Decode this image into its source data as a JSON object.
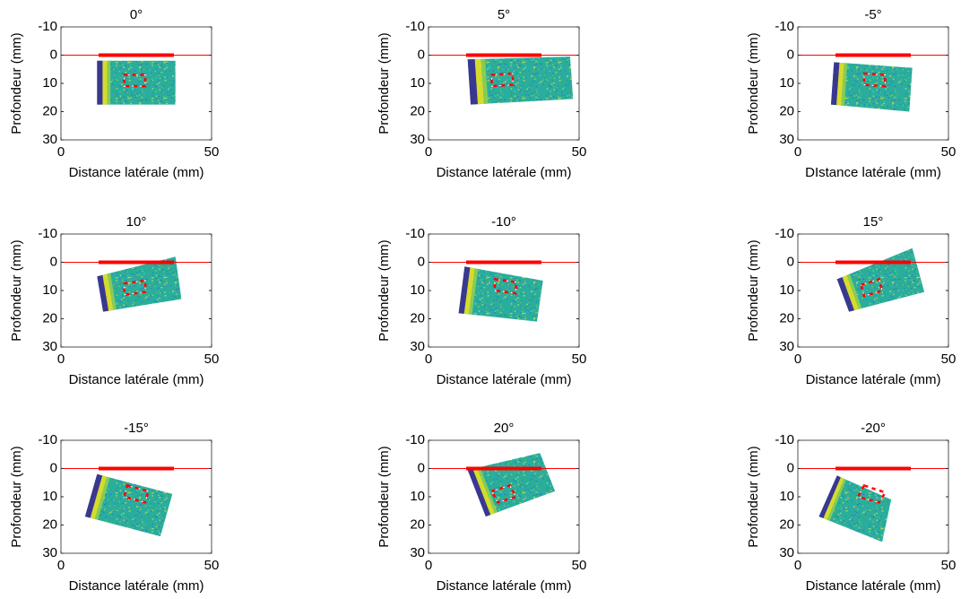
{
  "chart_data": [
    {
      "type": "image",
      "title": "0°",
      "xlabel": "Distance latérale (mm)",
      "ylabel": "Profondeur (mm)",
      "xlim": [
        0,
        50
      ],
      "ylim": [
        -10,
        30
      ],
      "y_reversed": true,
      "xticks": [
        0,
        50
      ],
      "yticks": [
        -10,
        0,
        10,
        20,
        30
      ],
      "lines": [
        {
          "color": "#ff0000",
          "linewidth": 1,
          "x": [
            0,
            50
          ],
          "y": [
            0,
            0
          ]
        },
        {
          "color": "#ff0000",
          "linewidth": 4,
          "x": [
            12.5,
            37.5
          ],
          "y": [
            0,
            0
          ]
        }
      ],
      "image": {
        "x": [
          12,
          38,
          38,
          12
        ],
        "y": [
          2,
          2,
          17.5,
          17.5
        ]
      },
      "roi": {
        "color": "#ff0000",
        "x": [
          21,
          28,
          28,
          21
        ],
        "y": [
          7,
          7,
          11,
          11
        ]
      }
    },
    {
      "type": "image",
      "title": "5°",
      "xlabel": "Distance latérale (mm)",
      "ylabel": "Profondeur (mm)",
      "xlim": [
        0,
        50
      ],
      "ylim": [
        -10,
        30
      ],
      "y_reversed": true,
      "xticks": [
        0,
        50
      ],
      "yticks": [
        -10,
        0,
        10,
        20,
        30
      ],
      "lines": [
        {
          "color": "#ff0000",
          "linewidth": 1,
          "x": [
            0,
            50
          ],
          "y": [
            0,
            0
          ]
        },
        {
          "color": "#ff0000",
          "linewidth": 4,
          "x": [
            12.5,
            37.5
          ],
          "y": [
            0,
            0
          ]
        }
      ],
      "image": {
        "x": [
          13,
          47,
          48,
          14
        ],
        "y": [
          1.5,
          0.5,
          15.5,
          17.5
        ]
      },
      "roi": {
        "color": "#ff0000",
        "x": [
          21,
          28,
          28,
          21
        ],
        "y": [
          7,
          6.5,
          10.5,
          11
        ]
      }
    },
    {
      "type": "image",
      "title": "-5°",
      "xlabel": "DIstance latérale (mm)",
      "ylabel": "Profondeur (mm)",
      "xlim": [
        0,
        50
      ],
      "ylim": [
        -10,
        30
      ],
      "y_reversed": true,
      "xticks": [
        0,
        50
      ],
      "yticks": [
        -10,
        0,
        10,
        20,
        30
      ],
      "lines": [
        {
          "color": "#ff0000",
          "linewidth": 1,
          "x": [
            0,
            50
          ],
          "y": [
            0,
            0
          ]
        },
        {
          "color": "#ff0000",
          "linewidth": 4,
          "x": [
            12.5,
            37.5
          ],
          "y": [
            0,
            0
          ]
        }
      ],
      "image": {
        "x": [
          12,
          38,
          37,
          11
        ],
        "y": [
          2.5,
          4.5,
          20,
          17.5
        ]
      },
      "roi": {
        "color": "#ff0000",
        "x": [
          22,
          29,
          29,
          22
        ],
        "y": [
          6.5,
          7,
          11,
          10.5
        ]
      }
    },
    {
      "type": "image",
      "title": "10°",
      "xlabel": "Distance latérale (mm)",
      "ylabel": "Profondeur (mm)",
      "xlim": [
        0,
        50
      ],
      "ylim": [
        -10,
        30
      ],
      "y_reversed": true,
      "xticks": [
        0,
        50
      ],
      "yticks": [
        -10,
        0,
        10,
        20,
        30
      ],
      "lines": [
        {
          "color": "#ff0000",
          "linewidth": 1,
          "x": [
            0,
            50
          ],
          "y": [
            0,
            0
          ]
        },
        {
          "color": "#ff0000",
          "linewidth": 4,
          "x": [
            12.5,
            37.5
          ],
          "y": [
            0,
            0
          ]
        }
      ],
      "image": {
        "x": [
          12,
          38,
          40,
          14
        ],
        "y": [
          5,
          -2,
          13,
          17.5
        ]
      },
      "roi": {
        "color": "#ff0000",
        "x": [
          21,
          28,
          28,
          21
        ],
        "y": [
          7.5,
          6.5,
          10.5,
          11.5
        ]
      }
    },
    {
      "type": "image",
      "title": "-10°",
      "xlabel": "Distance latérale (mm)",
      "ylabel": "Profondeur (mm)",
      "xlim": [
        0,
        50
      ],
      "ylim": [
        -10,
        30
      ],
      "y_reversed": true,
      "xticks": [
        0,
        50
      ],
      "yticks": [
        -10,
        0,
        10,
        20,
        30
      ],
      "lines": [
        {
          "color": "#ff0000",
          "linewidth": 1,
          "x": [
            0,
            50
          ],
          "y": [
            0,
            0
          ]
        },
        {
          "color": "#ff0000",
          "linewidth": 4,
          "x": [
            12.5,
            37.5
          ],
          "y": [
            0,
            0
          ]
        }
      ],
      "image": {
        "x": [
          12,
          38,
          36,
          10
        ],
        "y": [
          1.5,
          6.5,
          21,
          18
        ]
      },
      "roi": {
        "color": "#ff0000",
        "x": [
          22,
          29,
          29,
          22
        ],
        "y": [
          6,
          7,
          11,
          10
        ]
      }
    },
    {
      "type": "image",
      "title": "15°",
      "xlabel": "Distance latérale (mm)",
      "ylabel": "Profondeur (mm)",
      "xlim": [
        0,
        50
      ],
      "ylim": [
        -10,
        30
      ],
      "y_reversed": true,
      "xticks": [
        0,
        50
      ],
      "yticks": [
        -10,
        0,
        10,
        20,
        30
      ],
      "lines": [
        {
          "color": "#ff0000",
          "linewidth": 1,
          "x": [
            0,
            50
          ],
          "y": [
            0,
            0
          ]
        },
        {
          "color": "#ff0000",
          "linewidth": 4,
          "x": [
            12.5,
            37.5
          ],
          "y": [
            0,
            0
          ]
        }
      ],
      "image": {
        "x": [
          13,
          38,
          42,
          17
        ],
        "y": [
          6,
          -5,
          10.5,
          17.5
        ]
      },
      "roi": {
        "color": "#ff0000",
        "x": [
          21,
          27,
          28,
          22
        ],
        "y": [
          8,
          6,
          10,
          12
        ]
      }
    },
    {
      "type": "image",
      "title": "-15°",
      "xlabel": "Distance latérale (mm)",
      "ylabel": "Profondeur (mm)",
      "xlim": [
        0,
        50
      ],
      "ylim": [
        -10,
        30
      ],
      "y_reversed": true,
      "xticks": [
        0,
        50
      ],
      "yticks": [
        -10,
        0,
        10,
        20,
        30
      ],
      "lines": [
        {
          "color": "#ff0000",
          "linewidth": 1,
          "x": [
            0,
            50
          ],
          "y": [
            0,
            0
          ]
        },
        {
          "color": "#ff0000",
          "linewidth": 4,
          "x": [
            12.5,
            37.5
          ],
          "y": [
            0,
            0
          ]
        }
      ],
      "image": {
        "x": [
          12,
          37,
          33,
          8
        ],
        "y": [
          2,
          9,
          24,
          17
        ]
      },
      "roi": {
        "color": "#ff0000",
        "x": [
          22,
          29,
          28,
          21
        ],
        "y": [
          6,
          8,
          12,
          10
        ]
      }
    },
    {
      "type": "image",
      "title": "20°",
      "xlabel": "Distance latérale (mm)",
      "ylabel": "Profondeur (mm)",
      "xlim": [
        0,
        50
      ],
      "ylim": [
        -10,
        30
      ],
      "y_reversed": true,
      "xticks": [
        0,
        50
      ],
      "yticks": [
        -10,
        0,
        10,
        20,
        30
      ],
      "lines": [
        {
          "color": "#ff0000",
          "linewidth": 1,
          "x": [
            0,
            50
          ],
          "y": [
            0,
            0
          ]
        },
        {
          "color": "#ff0000",
          "linewidth": 4,
          "x": [
            12.5,
            37.5
          ],
          "y": [
            0,
            0
          ]
        }
      ],
      "image": {
        "x": [
          13,
          37,
          42,
          19
        ],
        "y": [
          0.5,
          -5.5,
          8,
          17
        ]
      },
      "roi": {
        "color": "#ff0000",
        "x": [
          21,
          27,
          29,
          23
        ],
        "y": [
          8,
          6,
          10,
          12
        ]
      }
    },
    {
      "type": "image",
      "title": "-20°",
      "xlabel": "Distance latérale (mm)",
      "ylabel": "Profondeur (mm)",
      "xlim": [
        0,
        50
      ],
      "ylim": [
        -10,
        30
      ],
      "y_reversed": true,
      "xticks": [
        0,
        50
      ],
      "yticks": [
        -10,
        0,
        10,
        20,
        30
      ],
      "lines": [
        {
          "color": "#ff0000",
          "linewidth": 1,
          "x": [
            0,
            50
          ],
          "y": [
            0,
            0
          ]
        },
        {
          "color": "#ff0000",
          "linewidth": 4,
          "x": [
            12.5,
            37.5
          ],
          "y": [
            0,
            0
          ]
        }
      ],
      "image": {
        "x": [
          13,
          31,
          28,
          7
        ],
        "y": [
          2.5,
          11,
          26,
          17
        ]
      },
      "roi": {
        "color": "#ff0000",
        "x": [
          22,
          29,
          27,
          20
        ],
        "y": [
          6,
          8.5,
          12,
          10
        ]
      }
    }
  ]
}
